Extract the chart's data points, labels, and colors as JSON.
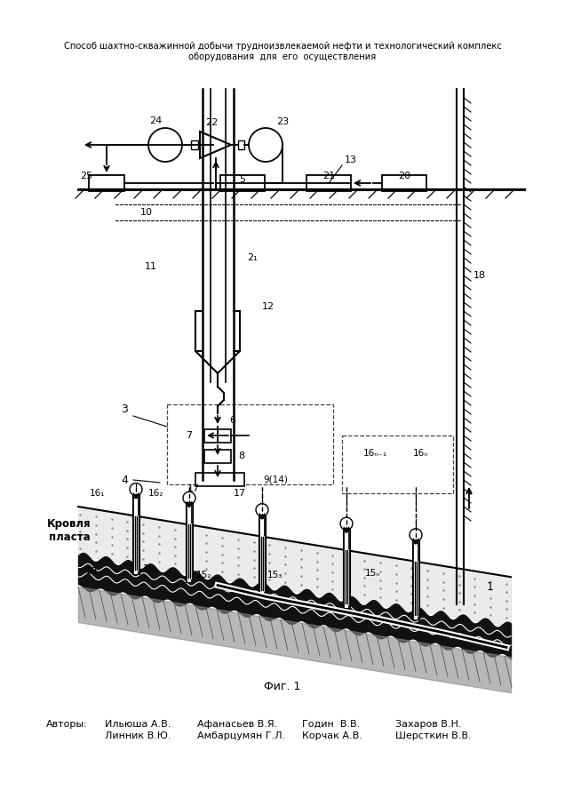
{
  "title_line1": "Способ шахтно-скважинной добычи трудноизвлекаемой нефти и технологический комплекс",
  "title_line2": "оборудования  для  его  осуществления",
  "fig_label": "Фиг. 1",
  "authors_label": "Авторы:",
  "authors_col1_line1": "Ильюша А.В.",
  "authors_col1_line2": "Линник В.Ю.",
  "authors_col2_line1": "Афанасьев В.Я.",
  "authors_col2_line2": "Амбарцумян Г.Л.",
  "authors_col3_line1": "Годин  В.В.",
  "authors_col3_line2": "Корчак А.В.",
  "authors_col4_line1": "Захаров В.Н.",
  "authors_col4_line2": "Шерсткин В.В.",
  "krovlya_line1": "Кровля",
  "krovlya_line2": "пласта",
  "bg_color": "#ffffff",
  "line_color": "#000000"
}
